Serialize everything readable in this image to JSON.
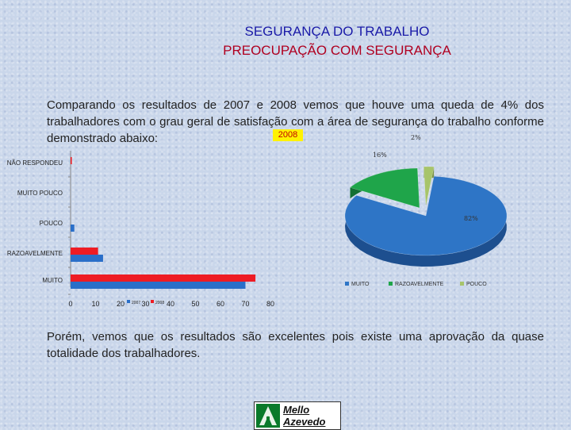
{
  "header": {
    "title": "SEGURANÇA DO TRABALHO",
    "subtitle": "PREOCUPAÇÃO COM SEGURANÇA"
  },
  "intro_text": "Comparando os resultados de 2007 e 2008 vemos que houve uma queda de 4% dos trabalhadores com o grau geral de satisfação com a área de segurança do trabalho conforme demonstrado abaixo:",
  "conclusion_text": "Porém, vemos que os resultados são excelentes pois existe uma aprovação da quase totalidade dos trabalhadores.",
  "year_label": "2008",
  "logo": {
    "line1": "Mello",
    "line2": "Azevedo"
  },
  "colors": {
    "bar_2007": "#2a6fc9",
    "bar_2008": "#ee1c24",
    "pie_muito": "#2e75c6",
    "pie_razoavelmente": "#1fa54a",
    "pie_pouco": "#a7c46a",
    "title1": "#1a1aa8",
    "title2": "#b00020"
  },
  "chart_data": [
    {
      "type": "bar",
      "orientation": "horizontal",
      "categories": [
        "NÃO RESPONDEU",
        "MUITO POUCO",
        "POUCO",
        "RAZOAVELMENTE",
        "MUITO"
      ],
      "series": [
        {
          "name": "2007",
          "values": [
            0,
            0,
            1.5,
            13,
            70
          ]
        },
        {
          "name": "2008",
          "values": [
            0.5,
            0,
            0,
            11,
            74
          ]
        }
      ],
      "x_ticks": [
        "0",
        "10",
        "20",
        "30",
        "40",
        "50",
        "60",
        "70",
        "80"
      ],
      "xlim": [
        0,
        80
      ],
      "legend": "inline-bottom"
    },
    {
      "type": "pie",
      "labels": [
        "MUITO",
        "RAZOAVELMENTE",
        "POUCO"
      ],
      "values": [
        82,
        16,
        2
      ],
      "data_labels": [
        "82%",
        "16%",
        "2%"
      ],
      "legend": "bottom"
    }
  ]
}
